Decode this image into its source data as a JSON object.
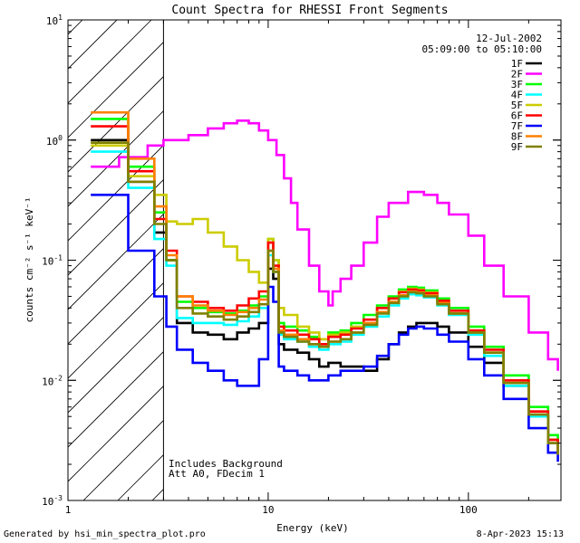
{
  "chart_data": {
    "type": "line",
    "title": "Count Spectra for RHESSI Front Segments",
    "xlabel": "Energy (keV)",
    "ylabel": "counts cm⁻² s⁻¹ keV⁻¹",
    "x_scale": "log",
    "y_scale": "log",
    "xlim": [
      1.0,
      290
    ],
    "ylim": [
      0.001,
      10
    ],
    "x_ticks": [
      {
        "value": 1,
        "label": "1"
      },
      {
        "value": 10,
        "label": "10"
      },
      {
        "value": 100,
        "label": "100"
      }
    ],
    "y_ticks": [
      {
        "value": 10,
        "base": "10",
        "exp": "1"
      },
      {
        "value": 1,
        "base": "10",
        "exp": "0"
      },
      {
        "value": 0.1,
        "base": "10",
        "exp": "-1"
      },
      {
        "value": 0.01,
        "base": "10",
        "exp": "-2"
      },
      {
        "value": 0.001,
        "base": "10",
        "exp": "-3"
      }
    ],
    "excluded_region_kev": [
      1.0,
      3.0
    ],
    "date": "12-Jul-2002",
    "time_range": "05:09:00 to 05:10:00",
    "annotations": [
      "Includes Background",
      "Att A0, FDecim 1"
    ],
    "series": [
      {
        "name": "1F",
        "color": "#000000",
        "x": [
          1.3,
          2,
          2.7,
          3.1,
          3.5,
          4.2,
          5,
          6,
          7,
          8,
          9,
          10,
          10.6,
          11.3,
          12,
          14,
          16,
          18,
          20,
          23,
          26,
          30,
          35,
          40,
          45,
          50,
          55,
          60,
          70,
          80,
          100,
          120,
          150,
          200,
          250,
          280
        ],
        "y": [
          1.0,
          0.45,
          0.17,
          0.1,
          0.03,
          0.025,
          0.024,
          0.022,
          0.025,
          0.027,
          0.03,
          0.085,
          0.07,
          0.02,
          0.018,
          0.017,
          0.015,
          0.013,
          0.014,
          0.013,
          0.013,
          0.012,
          0.015,
          0.02,
          0.025,
          0.028,
          0.03,
          0.03,
          0.028,
          0.025,
          0.019,
          0.014,
          0.009,
          0.005,
          0.003,
          0.0025
        ]
      },
      {
        "name": "2F",
        "color": "#ff00ff",
        "x": [
          1.3,
          1.8,
          2.5,
          3,
          4,
          5,
          6,
          7,
          8,
          9,
          10,
          11,
          12,
          13,
          14,
          16,
          18,
          20,
          21,
          23,
          26,
          30,
          35,
          40,
          50,
          60,
          70,
          80,
          100,
          120,
          150,
          200,
          250,
          280
        ],
        "y": [
          0.6,
          0.72,
          0.9,
          1.0,
          1.1,
          1.25,
          1.38,
          1.45,
          1.38,
          1.2,
          1.0,
          0.75,
          0.48,
          0.3,
          0.18,
          0.09,
          0.055,
          0.042,
          0.055,
          0.07,
          0.09,
          0.14,
          0.23,
          0.3,
          0.37,
          0.35,
          0.3,
          0.24,
          0.16,
          0.09,
          0.05,
          0.025,
          0.015,
          0.012
        ]
      },
      {
        "name": "3F",
        "color": "#00ff00",
        "x": [
          1.3,
          2,
          2.7,
          3.1,
          3.5,
          4.2,
          5,
          6,
          7,
          8,
          9,
          10,
          10.6,
          11.3,
          12,
          14,
          16,
          18,
          20,
          23,
          26,
          30,
          35,
          40,
          45,
          50,
          55,
          60,
          70,
          80,
          100,
          120,
          150,
          200,
          250,
          280
        ],
        "y": [
          1.5,
          0.6,
          0.25,
          0.1,
          0.045,
          0.04,
          0.037,
          0.036,
          0.038,
          0.042,
          0.05,
          0.15,
          0.1,
          0.03,
          0.028,
          0.026,
          0.023,
          0.022,
          0.025,
          0.026,
          0.03,
          0.035,
          0.042,
          0.05,
          0.057,
          0.06,
          0.059,
          0.056,
          0.048,
          0.04,
          0.028,
          0.019,
          0.011,
          0.006,
          0.0035,
          0.0028
        ]
      },
      {
        "name": "4F",
        "color": "#00ffff",
        "x": [
          1.3,
          2,
          2.7,
          3.1,
          3.5,
          4.2,
          5,
          6,
          7,
          8,
          9,
          10,
          10.6,
          11.3,
          12,
          14,
          16,
          18,
          20,
          23,
          26,
          30,
          35,
          40,
          45,
          50,
          55,
          60,
          70,
          80,
          100,
          120,
          150,
          200,
          250,
          280
        ],
        "y": [
          0.8,
          0.4,
          0.15,
          0.09,
          0.033,
          0.03,
          0.03,
          0.029,
          0.031,
          0.034,
          0.04,
          0.11,
          0.08,
          0.024,
          0.022,
          0.021,
          0.019,
          0.018,
          0.02,
          0.021,
          0.024,
          0.028,
          0.034,
          0.042,
          0.048,
          0.052,
          0.051,
          0.049,
          0.042,
          0.035,
          0.024,
          0.016,
          0.009,
          0.005,
          0.003,
          0.0025
        ]
      },
      {
        "name": "5F",
        "color": "#cccc00",
        "x": [
          1.3,
          2,
          2.7,
          3.1,
          3.5,
          4.2,
          5,
          6,
          7,
          8,
          9,
          10,
          10.6,
          11.3,
          12,
          14,
          16,
          18,
          20,
          23,
          26,
          30,
          35,
          40,
          45,
          50,
          55,
          60,
          70,
          80,
          100,
          120,
          150,
          200,
          250,
          280
        ],
        "y": [
          0.9,
          0.5,
          0.35,
          0.21,
          0.2,
          0.22,
          0.17,
          0.13,
          0.1,
          0.08,
          0.065,
          0.15,
          0.1,
          0.04,
          0.035,
          0.028,
          0.025,
          0.022,
          0.024,
          0.025,
          0.028,
          0.032,
          0.04,
          0.048,
          0.055,
          0.058,
          0.057,
          0.054,
          0.046,
          0.038,
          0.026,
          0.017,
          0.01,
          0.0055,
          0.0032,
          0.0026
        ]
      },
      {
        "name": "6F",
        "color": "#ff0000",
        "x": [
          1.3,
          2,
          2.7,
          3.1,
          3.5,
          4.2,
          5,
          6,
          7,
          8,
          9,
          10,
          10.6,
          11.3,
          12,
          14,
          16,
          18,
          20,
          23,
          26,
          30,
          35,
          40,
          45,
          50,
          55,
          60,
          70,
          80,
          100,
          120,
          150,
          200,
          250,
          280
        ],
        "y": [
          1.3,
          0.55,
          0.22,
          0.12,
          0.05,
          0.045,
          0.04,
          0.038,
          0.042,
          0.048,
          0.055,
          0.14,
          0.09,
          0.028,
          0.026,
          0.024,
          0.022,
          0.02,
          0.023,
          0.024,
          0.027,
          0.032,
          0.04,
          0.048,
          0.054,
          0.057,
          0.056,
          0.053,
          0.046,
          0.038,
          0.026,
          0.018,
          0.01,
          0.0055,
          0.0032,
          0.0026
        ]
      },
      {
        "name": "7F",
        "color": "#0000ff",
        "x": [
          1.3,
          2,
          2.7,
          3.1,
          3.5,
          4.2,
          5,
          6,
          7,
          8,
          9,
          10,
          10.6,
          11.3,
          12,
          14,
          16,
          18,
          20,
          23,
          26,
          30,
          35,
          40,
          45,
          50,
          55,
          60,
          70,
          80,
          100,
          120,
          150,
          200,
          250,
          280
        ],
        "y": [
          0.35,
          0.12,
          0.05,
          0.028,
          0.018,
          0.014,
          0.012,
          0.01,
          0.009,
          0.009,
          0.015,
          0.06,
          0.045,
          0.013,
          0.012,
          0.011,
          0.01,
          0.01,
          0.011,
          0.012,
          0.012,
          0.013,
          0.016,
          0.02,
          0.024,
          0.027,
          0.028,
          0.027,
          0.024,
          0.021,
          0.015,
          0.011,
          0.007,
          0.004,
          0.0025,
          0.0021
        ]
      },
      {
        "name": "8F",
        "color": "#ff8000",
        "x": [
          1.3,
          2,
          2.7,
          3.1,
          3.5,
          4.2,
          5,
          6,
          7,
          8,
          9,
          10,
          10.6,
          11.3,
          12,
          14,
          16,
          18,
          20,
          23,
          26,
          30,
          35,
          40,
          45,
          50,
          55,
          60,
          70,
          80,
          100,
          120,
          150,
          200,
          250,
          280
        ],
        "y": [
          1.7,
          0.7,
          0.28,
          0.11,
          0.05,
          0.042,
          0.038,
          0.035,
          0.037,
          0.04,
          0.047,
          0.12,
          0.085,
          0.026,
          0.024,
          0.022,
          0.02,
          0.019,
          0.021,
          0.022,
          0.025,
          0.03,
          0.037,
          0.045,
          0.051,
          0.055,
          0.054,
          0.051,
          0.044,
          0.036,
          0.025,
          0.017,
          0.0095,
          0.0052,
          0.003,
          0.0024
        ]
      },
      {
        "name": "9F",
        "color": "#808000",
        "x": [
          1.3,
          2,
          2.7,
          3.1,
          3.5,
          4.2,
          5,
          6,
          7,
          8,
          9,
          10,
          10.6,
          11.3,
          12,
          14,
          16,
          18,
          20,
          23,
          26,
          30,
          35,
          40,
          45,
          50,
          55,
          60,
          70,
          80,
          100,
          120,
          150,
          200,
          250,
          280
        ],
        "y": [
          0.95,
          0.45,
          0.2,
          0.1,
          0.04,
          0.036,
          0.034,
          0.032,
          0.034,
          0.037,
          0.043,
          0.12,
          0.08,
          0.025,
          0.023,
          0.021,
          0.02,
          0.019,
          0.021,
          0.022,
          0.025,
          0.029,
          0.036,
          0.044,
          0.05,
          0.054,
          0.053,
          0.05,
          0.043,
          0.036,
          0.025,
          0.017,
          0.0095,
          0.0052,
          0.003,
          0.0024
        ]
      }
    ]
  },
  "footer": {
    "generated_by": "Generated by hsi_min_spectra_plot.pro",
    "timestamp": "8-Apr-2023 15:13"
  }
}
